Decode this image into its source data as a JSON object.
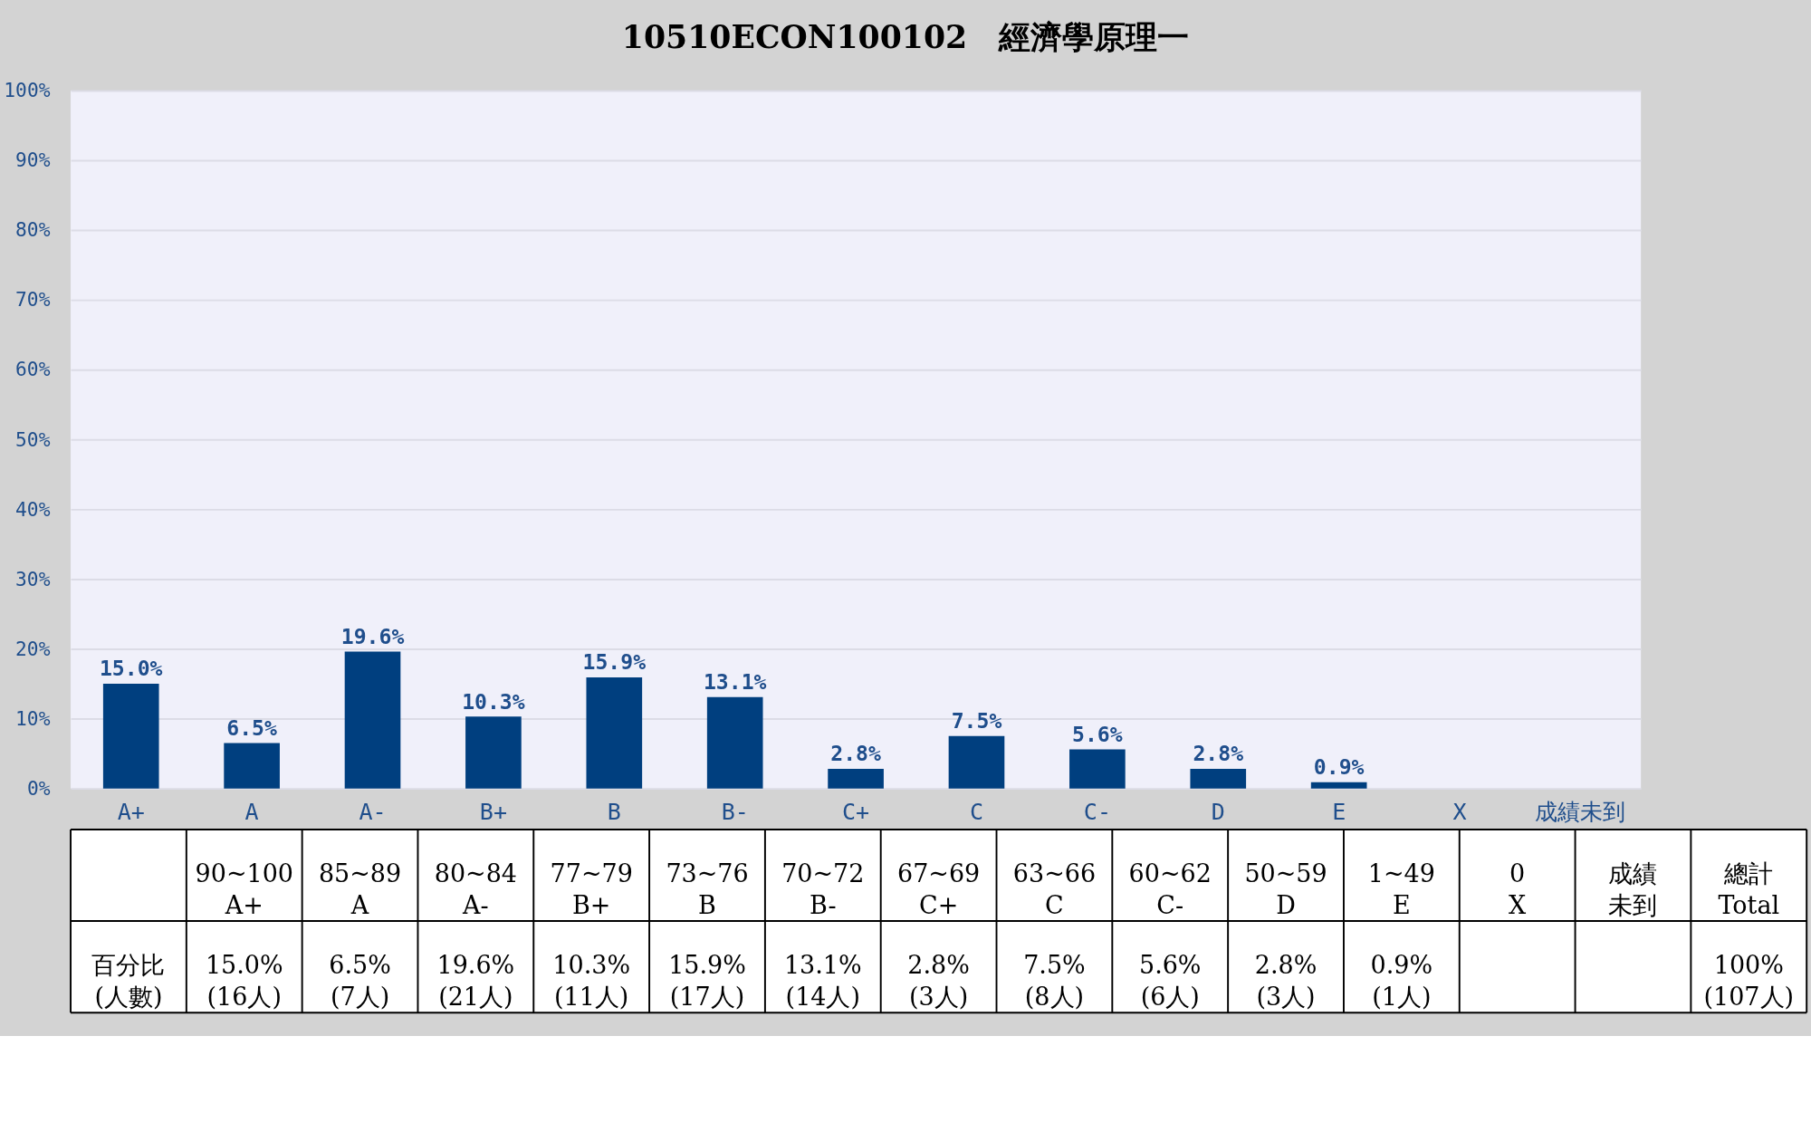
{
  "chart_data": {
    "type": "bar",
    "title": "10510ECON100102　經濟學原理一",
    "categories": [
      "A+",
      "A",
      "A-",
      "B+",
      "B",
      "B-",
      "C+",
      "C",
      "C-",
      "D",
      "E",
      "X",
      "成績未到"
    ],
    "values": [
      15.0,
      6.5,
      19.6,
      10.3,
      15.9,
      13.1,
      2.8,
      7.5,
      5.6,
      2.8,
      0.9,
      0,
      0
    ],
    "value_labels": [
      "15.0%",
      "6.5%",
      "19.6%",
      "10.3%",
      "15.9%",
      "13.1%",
      "2.8%",
      "7.5%",
      "5.6%",
      "2.8%",
      "0.9%",
      null,
      null
    ],
    "color": "#003f7f",
    "ylim": [
      0,
      100
    ],
    "yticks": [
      {
        "value": 0,
        "label": "0%"
      },
      {
        "value": 10,
        "label": "10%"
      },
      {
        "value": 20,
        "label": "20%"
      },
      {
        "value": 30,
        "label": "30%"
      },
      {
        "value": 40,
        "label": "40%"
      },
      {
        "value": 50,
        "label": "50%"
      },
      {
        "value": 60,
        "label": "60%"
      },
      {
        "value": 70,
        "label": "70%"
      },
      {
        "value": 80,
        "label": "80%"
      },
      {
        "value": 90,
        "label": "90%"
      },
      {
        "value": 100,
        "label": "100%"
      }
    ],
    "grid": "y",
    "annotations": [
      "百分比\n(人數)",
      "90~100\nA+",
      "85~89\nA",
      "80~84\nA-",
      "77~79\nB+",
      "73~76\nB",
      "70~72\nB-",
      "67~69\nC+",
      "63~66\nC",
      "60~62\nC-",
      "50~59\nD",
      "1~49\nE",
      "0\nX",
      "成績未到",
      "總計\nTotal",
      "15.0%\n(16人)",
      "6.5%\n(7人)",
      "19.6%\n(21人)",
      "10.3%\n(11人)",
      "15.9%\n(17人)",
      "13.1%\n(14人)",
      "2.8%\n(3人)",
      "7.5%\n(8人)",
      "5.6%\n(6人)",
      "2.8%\n(3人)",
      "0.9%\n(1人)",
      "100%\n(107人)"
    ]
  }
}
